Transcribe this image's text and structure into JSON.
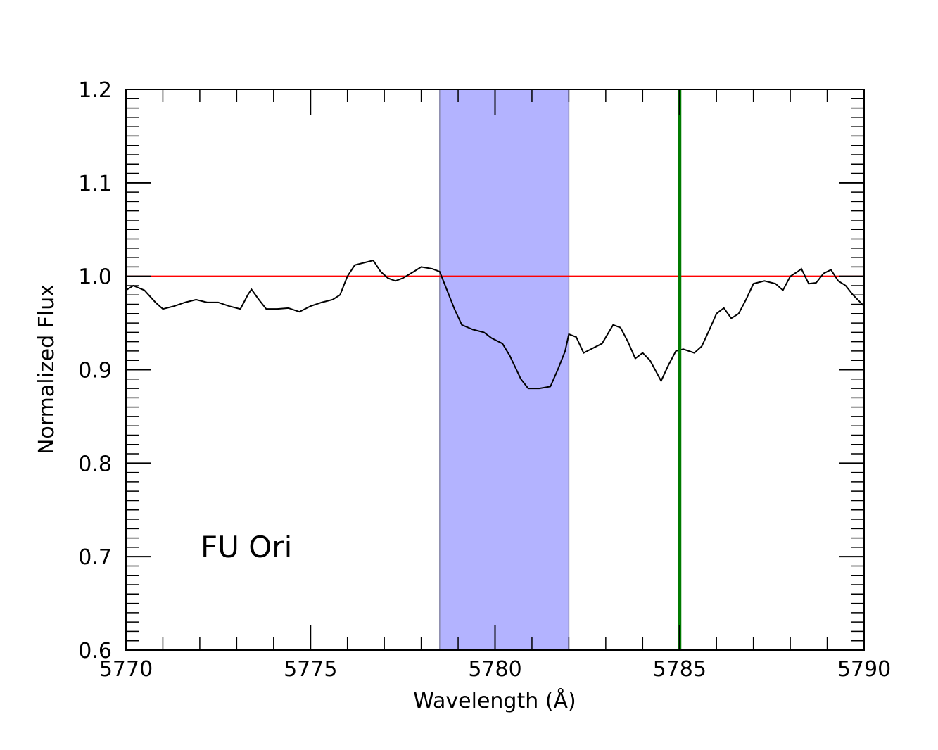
{
  "chart_data": {
    "type": "line",
    "xlabel": "Wavelength (Å)",
    "ylabel": "Normalized Flux",
    "annotation": "FU Ori",
    "xlim": [
      5770,
      5790
    ],
    "ylim": [
      0.6,
      1.2
    ],
    "xticks": [
      5770,
      5775,
      5780,
      5785,
      5790
    ],
    "yticks": [
      0.6,
      0.7,
      0.8,
      0.9,
      {
        "value": 1,
        "label": "1.0"
      },
      1.1,
      1.2
    ],
    "xminorticks": [
      5771,
      5772,
      5773,
      5774,
      5776,
      5777,
      5778,
      5779,
      5781,
      5782,
      5783,
      5784,
      5786,
      5787,
      5788,
      5789
    ],
    "yminorticks": [
      0.61,
      0.62,
      0.63,
      0.64,
      0.65,
      0.66,
      0.67,
      0.68,
      0.69,
      0.71,
      0.72,
      0.73,
      0.74,
      0.75,
      0.76,
      0.77,
      0.78,
      0.79,
      0.81,
      0.82,
      0.83,
      0.84,
      0.85,
      0.86,
      0.87,
      0.88,
      0.89,
      0.91,
      0.92,
      0.93,
      0.94,
      0.95,
      0.96,
      0.97,
      0.98,
      0.99,
      1.01,
      1.02,
      1.03,
      1.04,
      1.05,
      1.06,
      1.07,
      1.08,
      1.09,
      1.11,
      1.12,
      1.13,
      1.14,
      1.15,
      1.16,
      1.17,
      1.18,
      1.19
    ],
    "color": "#000000",
    "x": [
      5770.0,
      5770.2,
      5770.5,
      5770.8,
      5771.0,
      5771.3,
      5771.6,
      5771.9,
      5772.2,
      5772.5,
      5772.8,
      5773.1,
      5773.3,
      5773.4,
      5773.6,
      5773.8,
      5774.1,
      5774.4,
      5774.7,
      5775.0,
      5775.3,
      5775.6,
      5775.8,
      5776.0,
      5776.2,
      5776.5,
      5776.7,
      5776.9,
      5777.1,
      5777.3,
      5777.5,
      5777.8,
      5778.0,
      5778.3,
      5778.5,
      5778.7,
      5778.9,
      5779.1,
      5779.4,
      5779.7,
      5779.9,
      5780.2,
      5780.4,
      5780.7,
      5780.9,
      5781.2,
      5781.5,
      5781.7,
      5781.9,
      5782.0,
      5782.2,
      5782.4,
      5782.6,
      5782.9,
      5783.2,
      5783.4,
      5783.6,
      5783.8,
      5784.0,
      5784.2,
      5784.5,
      5784.7,
      5784.9,
      5785.1,
      5785.4,
      5785.6,
      5785.8,
      5786.0,
      5786.2,
      5786.4,
      5786.6,
      5786.8,
      5787.0,
      5787.3,
      5787.6,
      5787.8,
      5788.0,
      5788.2,
      5788.3,
      5788.5,
      5788.7,
      5788.9,
      5789.1,
      5789.3,
      5789.5,
      5789.7,
      5790.0
    ],
    "values": [
      0.985,
      0.99,
      0.985,
      0.972,
      0.965,
      0.968,
      0.972,
      0.975,
      0.972,
      0.972,
      0.968,
      0.965,
      0.98,
      0.986,
      0.975,
      0.965,
      0.965,
      0.966,
      0.962,
      0.968,
      0.972,
      0.975,
      0.98,
      1.0,
      1.012,
      1.015,
      1.017,
      1.005,
      0.998,
      0.995,
      0.998,
      1.005,
      1.01,
      1.008,
      1.005,
      0.985,
      0.965,
      0.948,
      0.943,
      0.94,
      0.934,
      0.928,
      0.915,
      0.89,
      0.88,
      0.88,
      0.882,
      0.9,
      0.92,
      0.938,
      0.935,
      0.918,
      0.922,
      0.928,
      0.948,
      0.945,
      0.93,
      0.912,
      0.918,
      0.91,
      0.888,
      0.905,
      0.92,
      0.922,
      0.918,
      0.925,
      0.942,
      0.96,
      0.966,
      0.955,
      0.96,
      0.975,
      0.992,
      0.995,
      0.992,
      0.985,
      1.0,
      1.005,
      1.008,
      0.992,
      0.993,
      1.003,
      1.007,
      0.995,
      0.99,
      0.98,
      0.968
    ],
    "hspan": {
      "xmin": 5778.5,
      "xmax": 5782.0,
      "color": "#b3b3ff"
    },
    "hline": {
      "y": 1,
      "color": "#ff0000"
    },
    "vline": {
      "x": 5785,
      "color": "#007a00"
    }
  }
}
